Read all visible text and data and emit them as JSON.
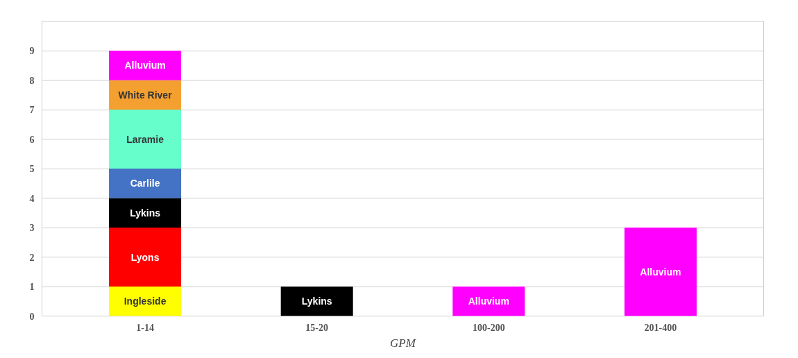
{
  "chart_data": {
    "type": "bar",
    "stacked": true,
    "xlabel": "GPM",
    "categories": [
      "1-14",
      "15-20",
      "100-200",
      "201-400"
    ],
    "series": [
      {
        "name": "Ingleside",
        "color": "#ffff00",
        "values": [
          1,
          null,
          null,
          null
        ]
      },
      {
        "name": "Lyons",
        "color": "#ff0000",
        "values": [
          2,
          null,
          null,
          null
        ]
      },
      {
        "name": "Lykins",
        "color": "#000000",
        "values": [
          1,
          1,
          null,
          null
        ]
      },
      {
        "name": "Carlile",
        "color": "#4472c4",
        "values": [
          1,
          null,
          null,
          null
        ]
      },
      {
        "name": "Laramie",
        "color": "#66ffcc",
        "values": [
          2,
          null,
          null,
          null
        ]
      },
      {
        "name": "White River",
        "color": "#f4a030",
        "values": [
          1,
          null,
          null,
          null
        ]
      },
      {
        "name": "Alluvium",
        "color": "#ff00ff",
        "values": [
          1,
          null,
          1,
          3
        ]
      }
    ],
    "ylim": [
      0,
      10
    ],
    "yticks": [
      0,
      1,
      2,
      3,
      4,
      5,
      6,
      7,
      8,
      9
    ],
    "grid": "y",
    "legend": false
  }
}
